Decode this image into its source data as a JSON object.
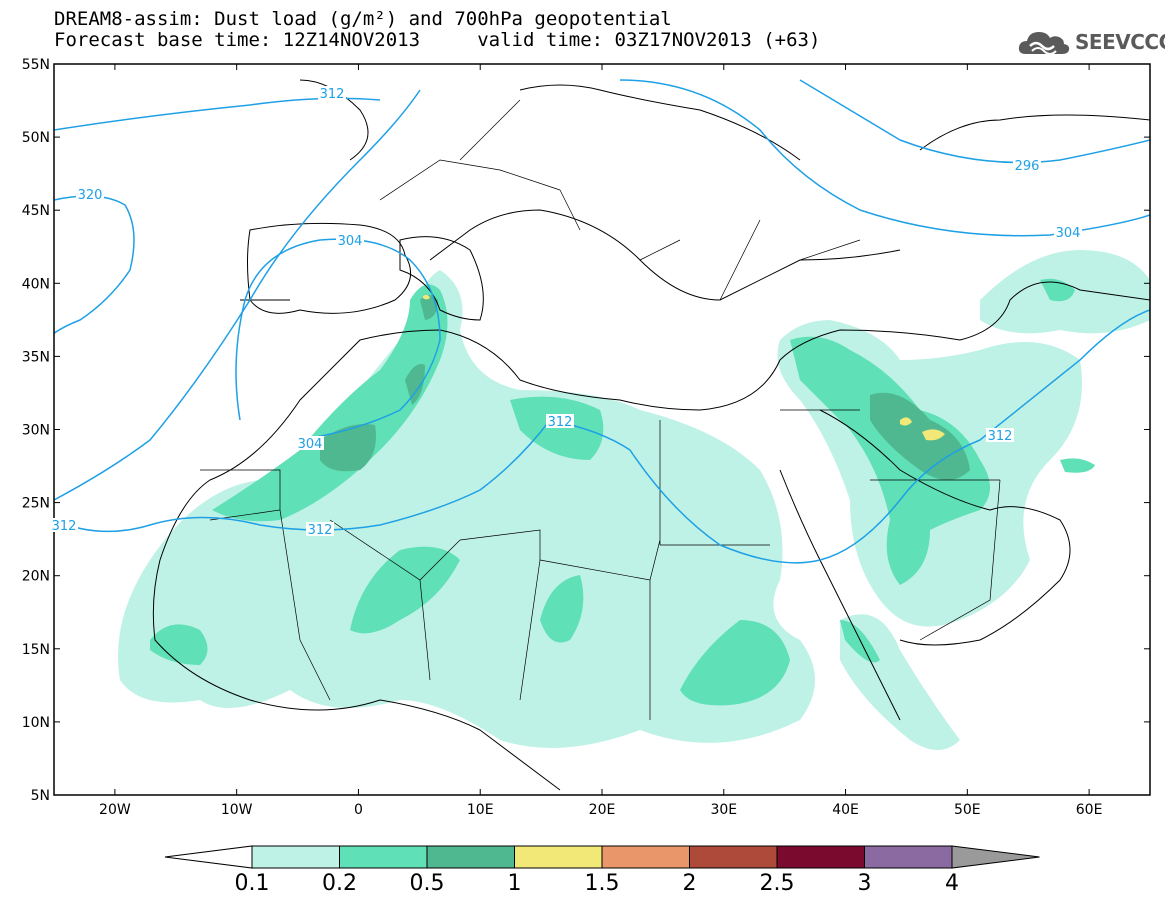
{
  "title": {
    "line1": "DREAM8-assim: Dust load (g/m²) and 700hPa geopotential",
    "line2": "Forecast base time: 12Z14NOV2013     valid time: 03Z17NOV2013 (+63)"
  },
  "logo": {
    "text": "SEEVCCC",
    "icon": "cloud-logo-icon"
  },
  "map": {
    "lat_ticks": [
      "55N",
      "50N",
      "45N",
      "40N",
      "35N",
      "30N",
      "25N",
      "20N",
      "15N",
      "10N",
      "5N"
    ],
    "lon_ticks": [
      "20W",
      "10W",
      "0",
      "10E",
      "20E",
      "30E",
      "40E",
      "50E",
      "60E"
    ],
    "contour_labels": [
      {
        "id": "312-north",
        "text": "312"
      },
      {
        "id": "320-west",
        "text": "320"
      },
      {
        "id": "304-iberia",
        "text": "304"
      },
      {
        "id": "304-morocco",
        "text": "304"
      },
      {
        "id": "312-libya",
        "text": "312"
      },
      {
        "id": "312-westafrica",
        "text": "312"
      },
      {
        "id": "312-sahara",
        "text": "312"
      },
      {
        "id": "312-gulf",
        "text": "312"
      },
      {
        "id": "296-russia",
        "text": "296"
      },
      {
        "id": "304-caspian",
        "text": "304"
      }
    ],
    "colors": {
      "ocean_land": "#ffffff",
      "border": "#000000",
      "contour": "#1ea0e6"
    }
  },
  "colorbar": {
    "labels": [
      "0.1",
      "0.2",
      "0.5",
      "1",
      "1.5",
      "2",
      "2.5",
      "3",
      "4"
    ],
    "colors": [
      "#bff2e6",
      "#5fe0b6",
      "#4fb890",
      "#f2e878",
      "#e8966a",
      "#ad4a3a",
      "#7a0a2e",
      "#8a6aa0",
      "#9a9a9a"
    ]
  }
}
